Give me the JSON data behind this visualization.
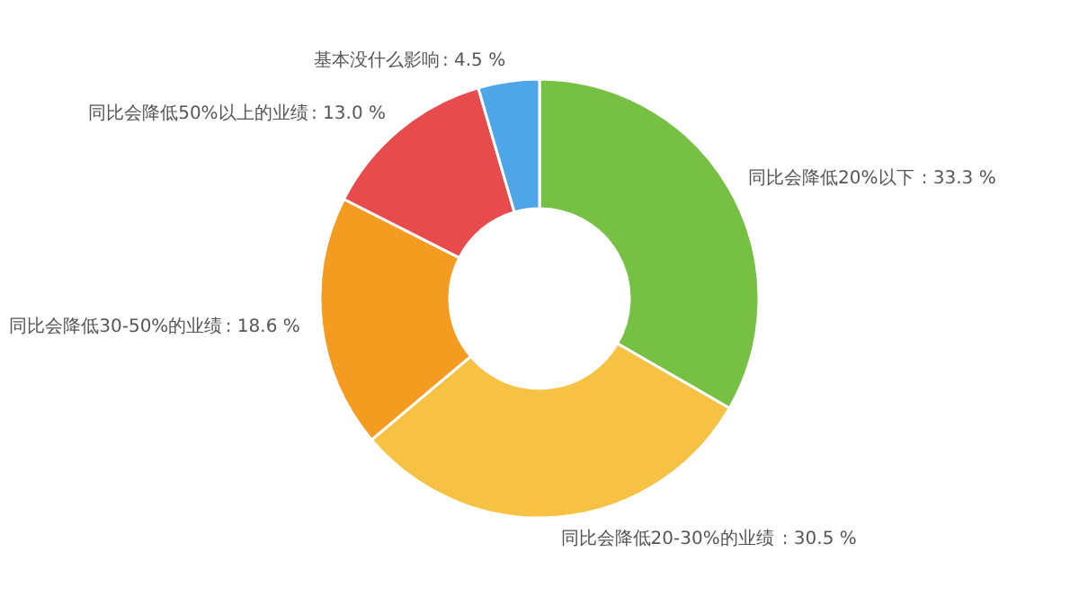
{
  "chart_data": {
    "type": "donut",
    "categories": [
      "同比会降低20%以下",
      "同比会降低20-30%的业绩",
      "同比会降低30-50%的业绩",
      "同比会降低50%以上的业绩",
      "基本没什么影响"
    ],
    "values": [
      33.3,
      30.5,
      18.6,
      13.0,
      4.5
    ],
    "colors": [
      "#76c043",
      "#f7c244",
      "#f39c1f",
      "#e84b4b",
      "#4ea5e8"
    ],
    "value_labels": [
      ": 33.3 %",
      ": 30.5 %",
      ": 18.6 %",
      ": 13.0 %",
      ": 4.5 %"
    ],
    "legend": false
  }
}
